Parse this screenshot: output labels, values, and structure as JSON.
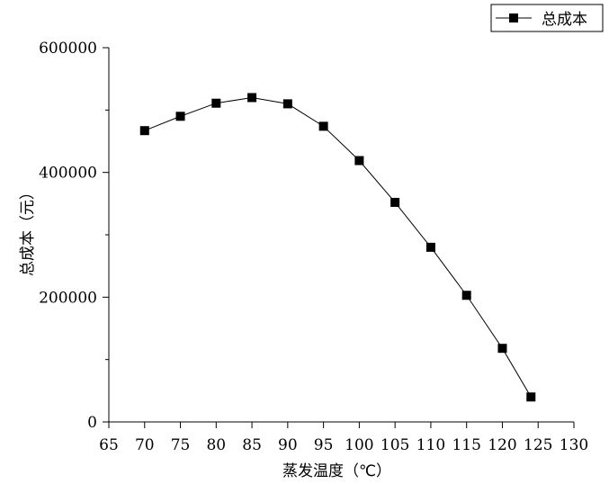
{
  "chart_data": {
    "type": "line",
    "xlabel": "蒸发温度（℃）",
    "ylabel": "总成本（元）",
    "xlim": [
      65,
      130
    ],
    "ylim": [
      0,
      600000
    ],
    "x_ticks": [
      "65",
      "70",
      "75",
      "80",
      "85",
      "90",
      "95",
      "100",
      "105",
      "110",
      "115",
      "120",
      "125",
      "130"
    ],
    "y_ticks": [
      "0",
      "200000",
      "400000",
      "600000"
    ],
    "legend_position": "top-right",
    "series": [
      {
        "name": "总成本",
        "color": "#000000",
        "marker": "square",
        "x": [
          70,
          75,
          80,
          85,
          90,
          95,
          100,
          105,
          110,
          115,
          120,
          124
        ],
        "y": [
          467000,
          490000,
          511000,
          520000,
          510000,
          474000,
          419000,
          352000,
          280000,
          203000,
          118000,
          40000
        ]
      }
    ]
  }
}
